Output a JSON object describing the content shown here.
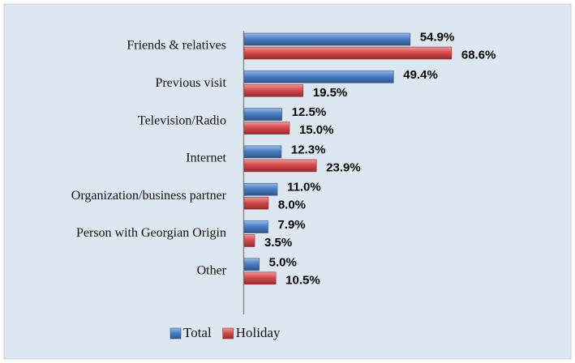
{
  "chart_data": {
    "type": "hbar",
    "categories": [
      "Friends & relatives",
      "Previous visit",
      "Television/Radio",
      "Internet",
      "Organization/business partner",
      "Person with Georgian Origin",
      "Other"
    ],
    "series": [
      {
        "name": "Total",
        "color": "#4a7fc8",
        "values": [
          54.9,
          49.4,
          12.5,
          12.3,
          11.0,
          7.9,
          5.0
        ],
        "value_labels": [
          "54.9%",
          "49.4%",
          "12.5%",
          "12.3%",
          "11.0%",
          "7.9%",
          "5.0%"
        ]
      },
      {
        "name": "Holiday",
        "color": "#d9494a",
        "values": [
          68.6,
          19.5,
          15.0,
          23.9,
          8.0,
          3.5,
          10.5
        ],
        "value_labels": [
          "68.6%",
          "19.5%",
          "15.0%",
          "23.9%",
          "8.0%",
          "3.5%",
          "10.5%"
        ]
      }
    ],
    "legend": "bottom"
  }
}
